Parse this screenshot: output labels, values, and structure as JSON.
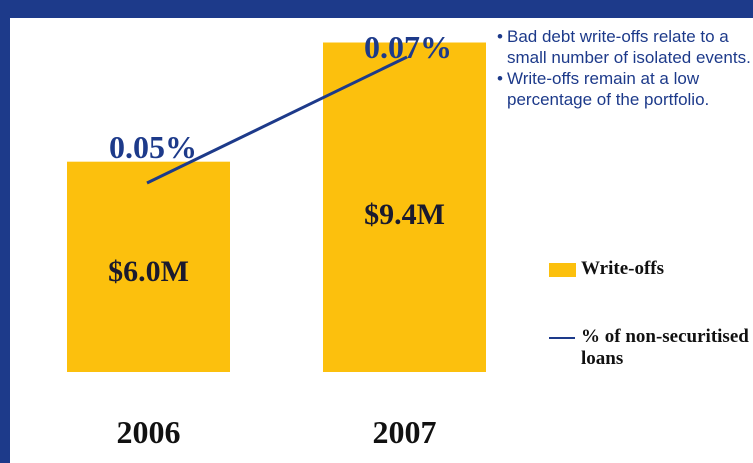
{
  "colors": {
    "frame": "#1d3a8a",
    "bar": "#fcc00d",
    "line": "#1d3a8a",
    "note_text": "#1d3a8a"
  },
  "chart_data": {
    "type": "bar",
    "categories": [
      "2006",
      "2007"
    ],
    "series": [
      {
        "name": "Write-offs",
        "type": "bar",
        "values": [
          6.0,
          9.4
        ],
        "labels": [
          "$6.0M",
          "$9.4M"
        ]
      },
      {
        "name": "% of non-securitised loans",
        "type": "line",
        "values": [
          0.05,
          0.07
        ],
        "labels": [
          "0.05%",
          "0.07%"
        ]
      }
    ],
    "ylim": [
      0,
      9.5
    ],
    "grid": false,
    "legend": "right"
  },
  "notes": [
    "Bad debt write-offs relate to a small number of isolated events.",
    "Write-offs remain at a low percentage of the portfolio."
  ],
  "legend": {
    "writeoffs": "Write-offs",
    "pct": "% of non-securitised loans"
  }
}
